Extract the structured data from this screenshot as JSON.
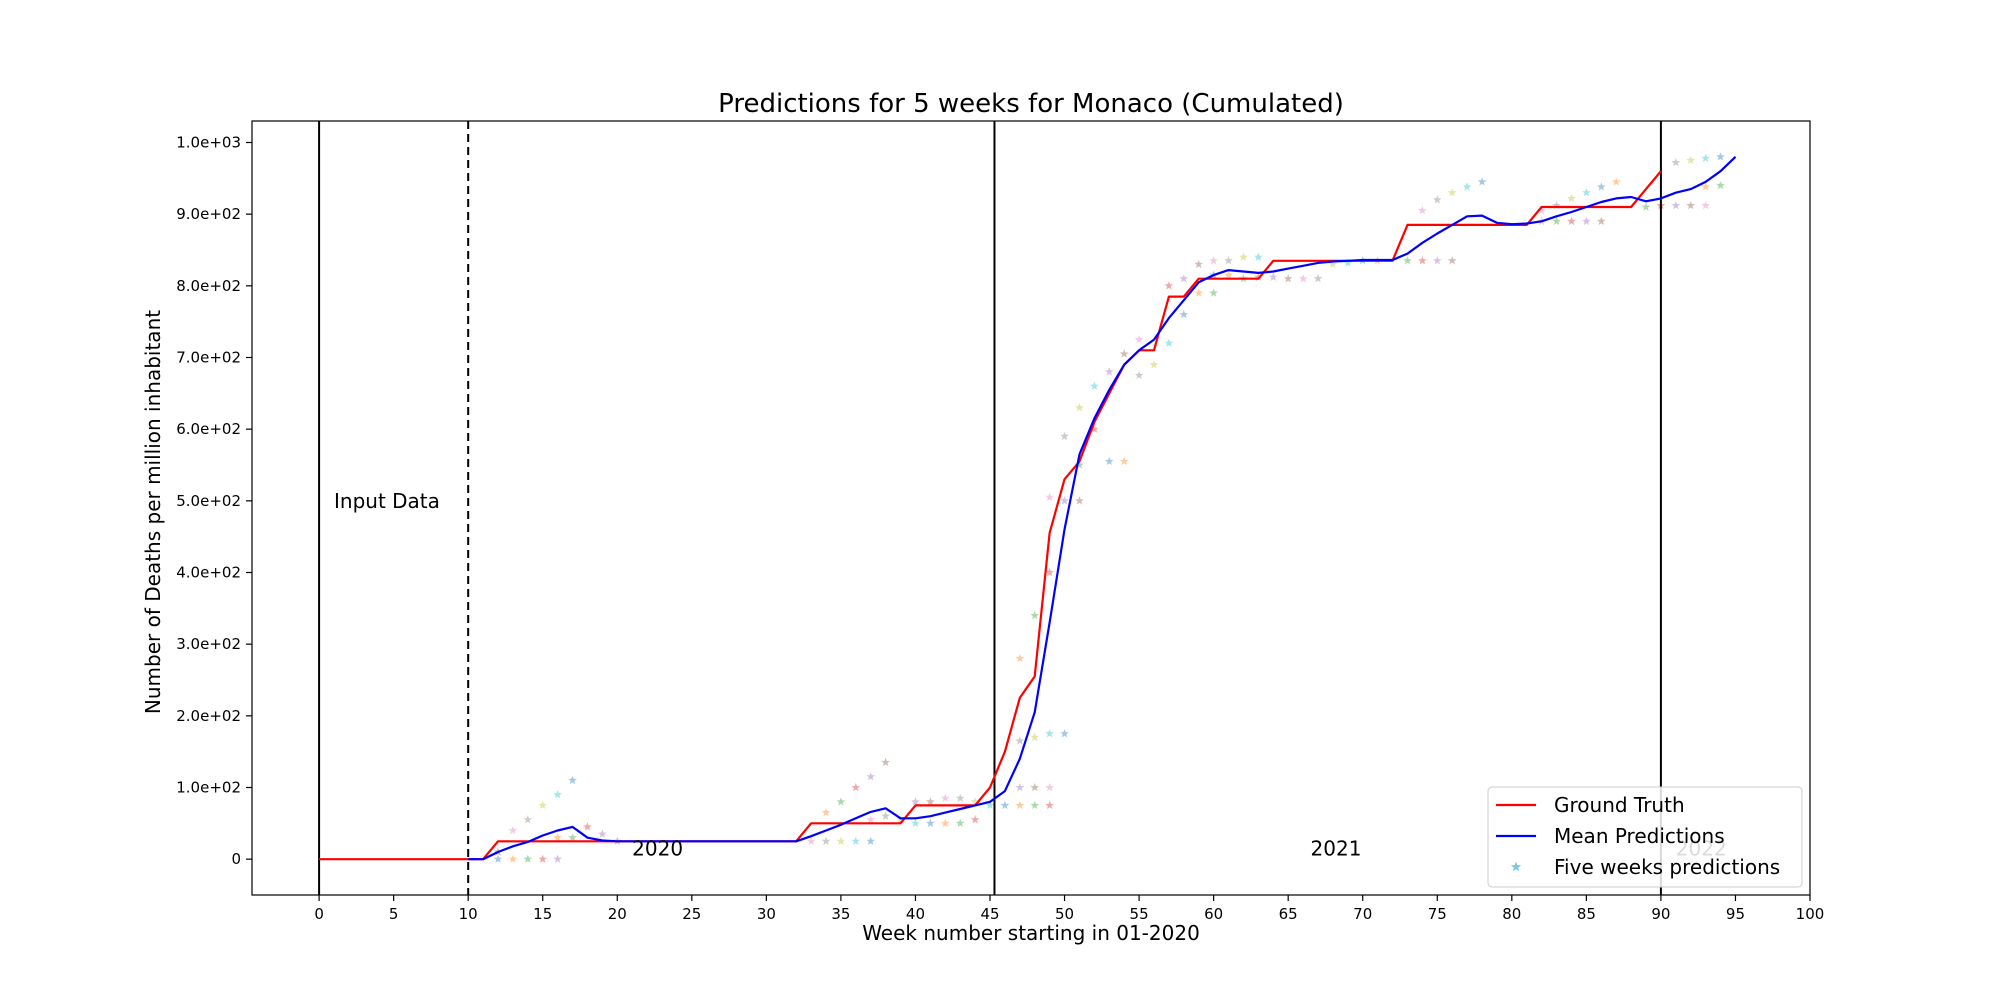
{
  "chart_data": {
    "type": "line",
    "title": "Predictions for 5 weeks for Monaco (Cumulated)",
    "xlabel": "Week number starting in 01-2020",
    "ylabel": "Number of Deaths per million inhabitant",
    "xlim": [
      -4.5,
      100
    ],
    "ylim": [
      -50,
      1030
    ],
    "x_ticks": [
      0,
      5,
      10,
      15,
      20,
      25,
      30,
      35,
      40,
      45,
      50,
      55,
      60,
      65,
      70,
      75,
      80,
      85,
      90,
      95,
      100
    ],
    "x_tick_labels": [
      "0",
      "5",
      "10",
      "15",
      "20",
      "25",
      "30",
      "35",
      "40",
      "45",
      "50",
      "55",
      "60",
      "65",
      "70",
      "75",
      "80",
      "85",
      "90",
      "95",
      "100"
    ],
    "y_ticks": [
      0,
      100,
      200,
      300,
      400,
      500,
      600,
      700,
      800,
      900,
      1000
    ],
    "y_tick_labels": [
      "0",
      "1.0e+02",
      "2.0e+02",
      "3.0e+02",
      "4.0e+02",
      "5.0e+02",
      "6.0e+02",
      "7.0e+02",
      "8.0e+02",
      "9.0e+02",
      "1.0e+03"
    ],
    "grid": false,
    "legend": "bottom-right",
    "vertical_lines": [
      {
        "x": 0,
        "style": "solid"
      },
      {
        "x": 10,
        "style": "dashed"
      },
      {
        "x": 45.3,
        "style": "solid"
      },
      {
        "x": 90,
        "style": "solid"
      }
    ],
    "annotations": [
      {
        "text": "Input Data",
        "x": 1,
        "y": 490,
        "color": "#000000"
      },
      {
        "text": "2020",
        "x": 21,
        "y": 5,
        "color": "#000000"
      },
      {
        "text": "2021",
        "x": 66.5,
        "y": 5,
        "color": "#000000"
      },
      {
        "text": "2022",
        "x": 91,
        "y": 5,
        "color": "#bbbbbb"
      }
    ],
    "series": [
      {
        "name": "Ground Truth",
        "color": "#ff0000",
        "kind": "line",
        "points": [
          [
            0,
            0
          ],
          [
            1,
            0
          ],
          [
            2,
            0
          ],
          [
            3,
            0
          ],
          [
            4,
            0
          ],
          [
            5,
            0
          ],
          [
            6,
            0
          ],
          [
            7,
            0
          ],
          [
            8,
            0
          ],
          [
            9,
            0
          ],
          [
            10,
            0
          ],
          [
            11,
            0
          ],
          [
            12,
            25
          ],
          [
            13,
            25
          ],
          [
            14,
            25
          ],
          [
            15,
            25
          ],
          [
            16,
            25
          ],
          [
            17,
            25
          ],
          [
            18,
            25
          ],
          [
            19,
            25
          ],
          [
            20,
            25
          ],
          [
            21,
            25
          ],
          [
            22,
            25
          ],
          [
            23,
            25
          ],
          [
            24,
            25
          ],
          [
            25,
            25
          ],
          [
            26,
            25
          ],
          [
            27,
            25
          ],
          [
            28,
            25
          ],
          [
            29,
            25
          ],
          [
            30,
            25
          ],
          [
            31,
            25
          ],
          [
            32,
            25
          ],
          [
            33,
            50
          ],
          [
            34,
            50
          ],
          [
            35,
            50
          ],
          [
            36,
            50
          ],
          [
            37,
            50
          ],
          [
            38,
            50
          ],
          [
            39,
            50
          ],
          [
            40,
            75
          ],
          [
            41,
            75
          ],
          [
            42,
            75
          ],
          [
            43,
            75
          ],
          [
            44,
            75
          ],
          [
            45,
            100
          ],
          [
            46,
            150
          ],
          [
            47,
            225
          ],
          [
            48,
            255
          ],
          [
            49,
            455
          ],
          [
            50,
            530
          ],
          [
            51,
            555
          ],
          [
            52,
            610
          ],
          [
            53,
            650
          ],
          [
            54,
            690
          ],
          [
            55,
            710
          ],
          [
            56,
            710
          ],
          [
            57,
            785
          ],
          [
            58,
            785
          ],
          [
            59,
            810
          ],
          [
            60,
            810
          ],
          [
            61,
            810
          ],
          [
            62,
            810
          ],
          [
            63,
            810
          ],
          [
            64,
            835
          ],
          [
            65,
            835
          ],
          [
            66,
            835
          ],
          [
            67,
            835
          ],
          [
            68,
            835
          ],
          [
            69,
            835
          ],
          [
            70,
            835
          ],
          [
            71,
            835
          ],
          [
            72,
            835
          ],
          [
            73,
            885
          ],
          [
            74,
            885
          ],
          [
            75,
            885
          ],
          [
            76,
            885
          ],
          [
            77,
            885
          ],
          [
            78,
            885
          ],
          [
            79,
            885
          ],
          [
            80,
            885
          ],
          [
            81,
            885
          ],
          [
            82,
            910
          ],
          [
            83,
            910
          ],
          [
            84,
            910
          ],
          [
            85,
            910
          ],
          [
            86,
            910
          ],
          [
            87,
            910
          ],
          [
            88,
            910
          ],
          [
            89,
            935
          ],
          [
            90,
            960
          ]
        ]
      },
      {
        "name": "Mean Predictions",
        "color": "#0000ff",
        "kind": "line",
        "points": [
          [
            10,
            0
          ],
          [
            11,
            0
          ],
          [
            12,
            10
          ],
          [
            13,
            18
          ],
          [
            14,
            24
          ],
          [
            15,
            33
          ],
          [
            16,
            40
          ],
          [
            17,
            45
          ],
          [
            18,
            30
          ],
          [
            19,
            26
          ],
          [
            20,
            25
          ],
          [
            21,
            25
          ],
          [
            22,
            25
          ],
          [
            23,
            25
          ],
          [
            24,
            25
          ],
          [
            25,
            25
          ],
          [
            26,
            25
          ],
          [
            27,
            25
          ],
          [
            28,
            25
          ],
          [
            29,
            25
          ],
          [
            30,
            25
          ],
          [
            31,
            25
          ],
          [
            32,
            25
          ],
          [
            33,
            32
          ],
          [
            34,
            40
          ],
          [
            35,
            48
          ],
          [
            36,
            57
          ],
          [
            37,
            66
          ],
          [
            38,
            71
          ],
          [
            39,
            57
          ],
          [
            40,
            57
          ],
          [
            41,
            60
          ],
          [
            42,
            65
          ],
          [
            43,
            70
          ],
          [
            44,
            75
          ],
          [
            45,
            80
          ],
          [
            46,
            95
          ],
          [
            47,
            140
          ],
          [
            48,
            205
          ],
          [
            49,
            330
          ],
          [
            50,
            460
          ],
          [
            51,
            565
          ],
          [
            52,
            615
          ],
          [
            53,
            655
          ],
          [
            54,
            690
          ],
          [
            55,
            710
          ],
          [
            56,
            725
          ],
          [
            57,
            755
          ],
          [
            58,
            780
          ],
          [
            59,
            805
          ],
          [
            60,
            815
          ],
          [
            61,
            822
          ],
          [
            62,
            820
          ],
          [
            63,
            818
          ],
          [
            64,
            820
          ],
          [
            65,
            824
          ],
          [
            66,
            828
          ],
          [
            67,
            832
          ],
          [
            68,
            834
          ],
          [
            69,
            835
          ],
          [
            70,
            836
          ],
          [
            71,
            836
          ],
          [
            72,
            836
          ],
          [
            73,
            845
          ],
          [
            74,
            860
          ],
          [
            75,
            873
          ],
          [
            76,
            885
          ],
          [
            77,
            897
          ],
          [
            78,
            898
          ],
          [
            79,
            888
          ],
          [
            80,
            886
          ],
          [
            81,
            887
          ],
          [
            82,
            890
          ],
          [
            83,
            897
          ],
          [
            84,
            903
          ],
          [
            85,
            910
          ],
          [
            86,
            917
          ],
          [
            87,
            922
          ],
          [
            88,
            924
          ],
          [
            89,
            918
          ],
          [
            90,
            922
          ],
          [
            91,
            930
          ],
          [
            92,
            935
          ],
          [
            93,
            945
          ],
          [
            94,
            960
          ],
          [
            95,
            980
          ]
        ]
      },
      {
        "name": "Five weeks predictions",
        "color": "#7ec8e3",
        "kind": "scatter",
        "points": [
          [
            12,
            0
          ],
          [
            13,
            0
          ],
          [
            14,
            0
          ],
          [
            15,
            0
          ],
          [
            16,
            0
          ],
          [
            12,
            10
          ],
          [
            13,
            40
          ],
          [
            14,
            55
          ],
          [
            15,
            75
          ],
          [
            16,
            90
          ],
          [
            17,
            110
          ],
          [
            16,
            30
          ],
          [
            17,
            30
          ],
          [
            18,
            45
          ],
          [
            19,
            35
          ],
          [
            20,
            25
          ],
          [
            33,
            25
          ],
          [
            34,
            25
          ],
          [
            35,
            25
          ],
          [
            36,
            25
          ],
          [
            37,
            25
          ],
          [
            34,
            65
          ],
          [
            35,
            80
          ],
          [
            36,
            100
          ],
          [
            37,
            115
          ],
          [
            38,
            135
          ],
          [
            37,
            55
          ],
          [
            38,
            60
          ],
          [
            39,
            55
          ],
          [
            40,
            50
          ],
          [
            41,
            50
          ],
          [
            42,
            50
          ],
          [
            43,
            50
          ],
          [
            44,
            55
          ],
          [
            40,
            80
          ],
          [
            41,
            80
          ],
          [
            42,
            85
          ],
          [
            43,
            85
          ],
          [
            44,
            80
          ],
          [
            45,
            75
          ],
          [
            46,
            75
          ],
          [
            47,
            75
          ],
          [
            48,
            75
          ],
          [
            49,
            75
          ],
          [
            47,
            100
          ],
          [
            48,
            100
          ],
          [
            49,
            100
          ],
          [
            47,
            165
          ],
          [
            48,
            170
          ],
          [
            49,
            175
          ],
          [
            50,
            175
          ],
          [
            47,
            280
          ],
          [
            48,
            340
          ],
          [
            49,
            400
          ],
          [
            50,
            500
          ],
          [
            51,
            500
          ],
          [
            49,
            505
          ],
          [
            50,
            590
          ],
          [
            51,
            630
          ],
          [
            52,
            660
          ],
          [
            53,
            555
          ],
          [
            54,
            555
          ],
          [
            51,
            550
          ],
          [
            52,
            600
          ],
          [
            53,
            680
          ],
          [
            54,
            705
          ],
          [
            55,
            725
          ],
          [
            55,
            675
          ],
          [
            56,
            690
          ],
          [
            57,
            720
          ],
          [
            58,
            760
          ],
          [
            59,
            790
          ],
          [
            60,
            790
          ],
          [
            57,
            800
          ],
          [
            58,
            810
          ],
          [
            59,
            830
          ],
          [
            60,
            835
          ],
          [
            61,
            835
          ],
          [
            62,
            840
          ],
          [
            63,
            840
          ],
          [
            60,
            815
          ],
          [
            61,
            815
          ],
          [
            62,
            810
          ],
          [
            63,
            812
          ],
          [
            64,
            812
          ],
          [
            65,
            810
          ],
          [
            66,
            810
          ],
          [
            67,
            810
          ],
          [
            68,
            830
          ],
          [
            69,
            832
          ],
          [
            70,
            835
          ],
          [
            71,
            835
          ],
          [
            73,
            835
          ],
          [
            74,
            835
          ],
          [
            75,
            835
          ],
          [
            76,
            835
          ],
          [
            74,
            905
          ],
          [
            75,
            920
          ],
          [
            76,
            930
          ],
          [
            77,
            938
          ],
          [
            78,
            945
          ],
          [
            82,
            890
          ],
          [
            83,
            890
          ],
          [
            84,
            890
          ],
          [
            85,
            890
          ],
          [
            86,
            890
          ],
          [
            82,
            905
          ],
          [
            83,
            912
          ],
          [
            84,
            922
          ],
          [
            85,
            930
          ],
          [
            86,
            938
          ],
          [
            87,
            945
          ],
          [
            89,
            910
          ],
          [
            90,
            912
          ],
          [
            91,
            912
          ],
          [
            92,
            912
          ],
          [
            93,
            912
          ],
          [
            91,
            972
          ],
          [
            92,
            975
          ],
          [
            93,
            978
          ],
          [
            94,
            980
          ],
          [
            93,
            938
          ],
          [
            94,
            940
          ]
        ]
      }
    ]
  }
}
